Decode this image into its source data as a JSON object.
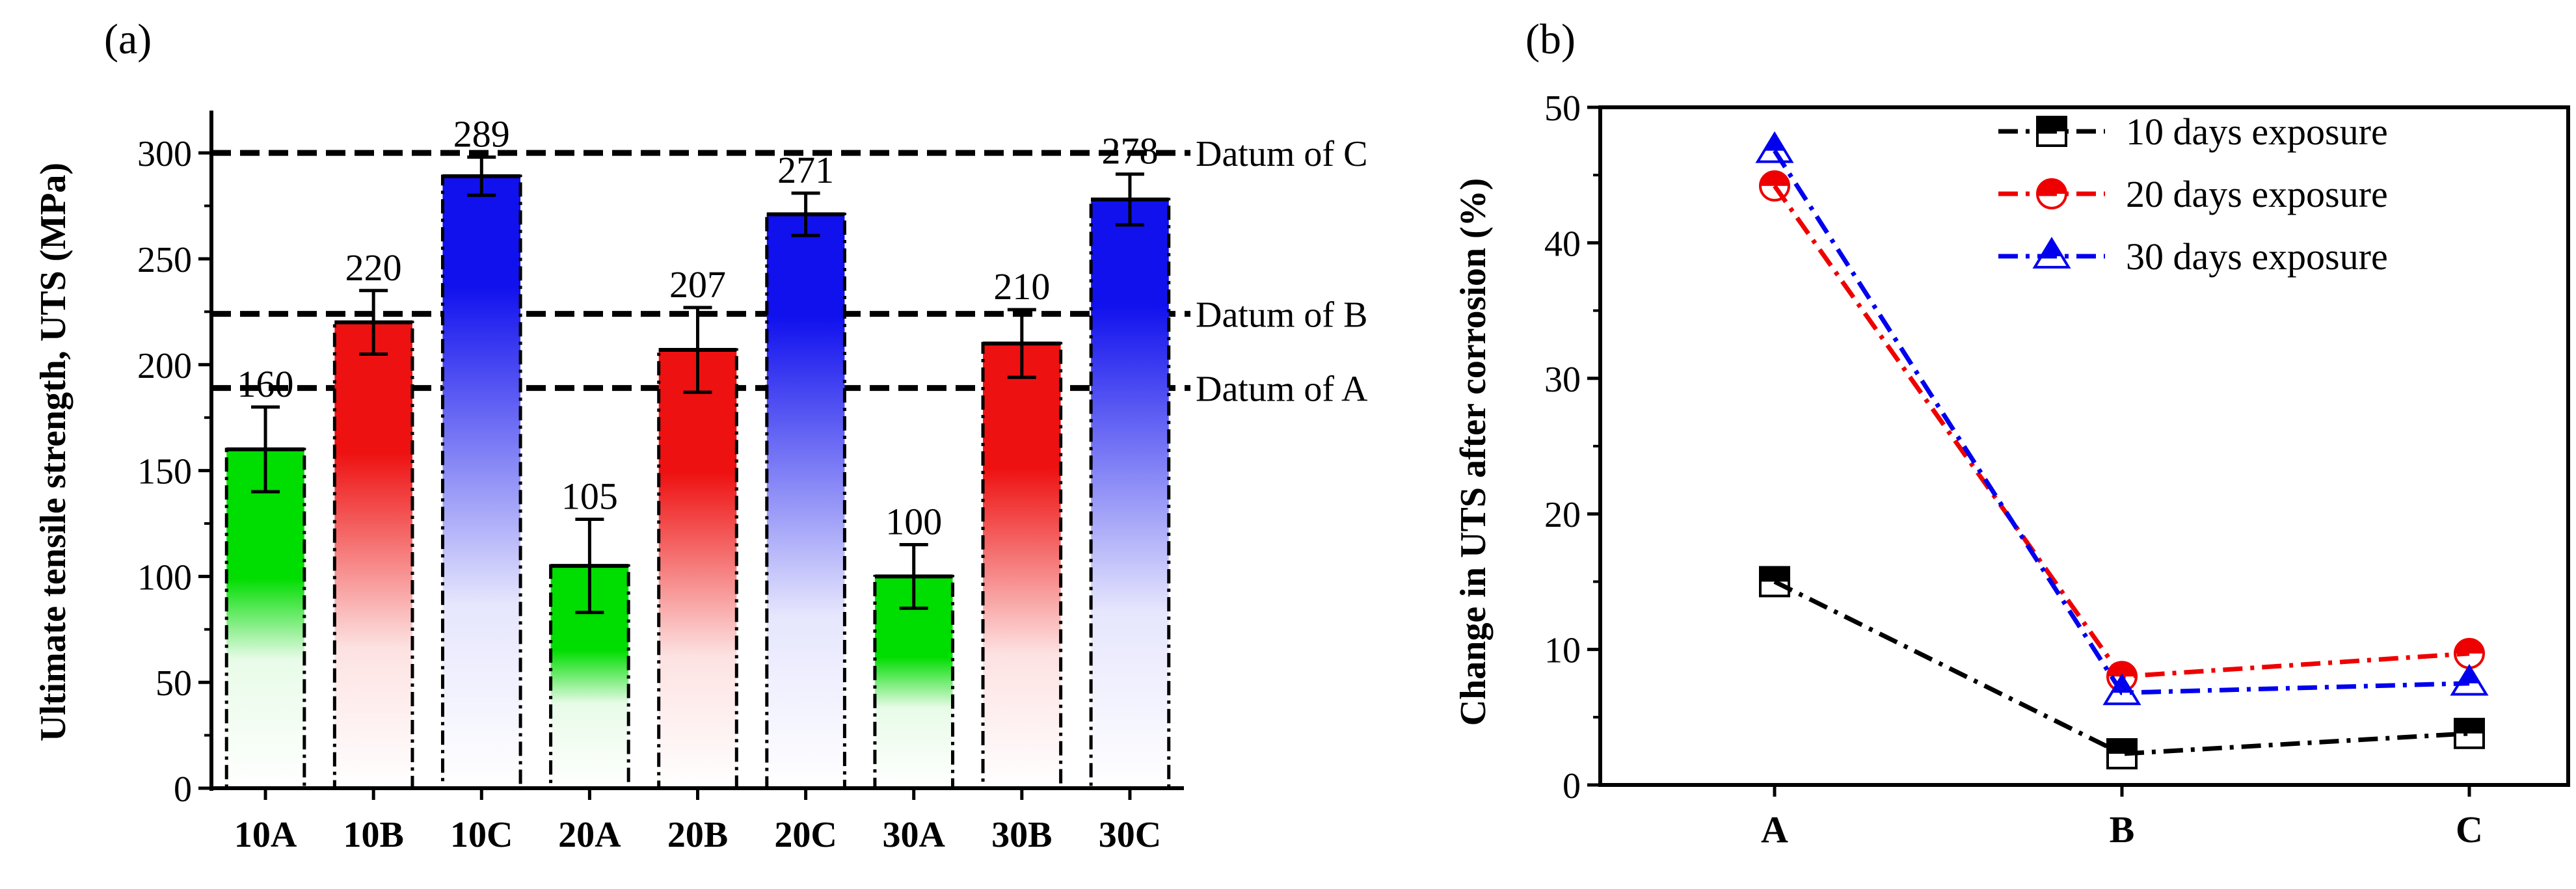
{
  "chart_data": [
    {
      "type": "bar",
      "panel_label": "(a)",
      "title": "",
      "xlabel": "",
      "ylabel": "Ultimate tensile strength, UTS (MPa)",
      "ylim": [
        0,
        320
      ],
      "yticks": [
        0,
        50,
        100,
        150,
        200,
        250,
        300
      ],
      "categories": [
        "10A",
        "10B",
        "10C",
        "20A",
        "20B",
        "20C",
        "30A",
        "30B",
        "30C"
      ],
      "values": [
        160,
        220,
        289,
        105,
        207,
        271,
        100,
        210,
        278
      ],
      "value_labels": [
        "160",
        "220",
        "289",
        "105",
        "207",
        "271",
        "100",
        "210",
        "278"
      ],
      "errors": [
        20,
        15,
        9,
        22,
        20,
        10,
        15,
        16,
        12
      ],
      "bar_groups": [
        "A",
        "B",
        "C",
        "A",
        "B",
        "C",
        "A",
        "B",
        "C"
      ],
      "group_colors": {
        "A": "#00dd00",
        "B": "#ee1111",
        "C": "#1111ee"
      },
      "reference_lines": [
        {
          "label": "Datum of C",
          "value": 300
        },
        {
          "label": "Datum of B",
          "value": 224
        },
        {
          "label": "Datum of A",
          "value": 189
        }
      ]
    },
    {
      "type": "line",
      "panel_label": "(b)",
      "title": "",
      "xlabel": "",
      "ylabel": "Change in UTS after corrosion (%)",
      "ylim": [
        0,
        50
      ],
      "yticks": [
        0,
        10,
        20,
        30,
        40,
        50
      ],
      "categories": [
        "A",
        "B",
        "C"
      ],
      "legend_position": "top-right",
      "series": [
        {
          "name": "10 days exposure",
          "values": [
            15.0,
            2.3,
            3.8
          ],
          "color": "#000000",
          "marker": "square"
        },
        {
          "name": "20 days exposure",
          "values": [
            44.2,
            8.0,
            9.7
          ],
          "color": "#ee0000",
          "marker": "circle"
        },
        {
          "name": "30 days exposure",
          "values": [
            46.8,
            6.8,
            7.5
          ],
          "color": "#0000ee",
          "marker": "triangle"
        }
      ]
    }
  ]
}
